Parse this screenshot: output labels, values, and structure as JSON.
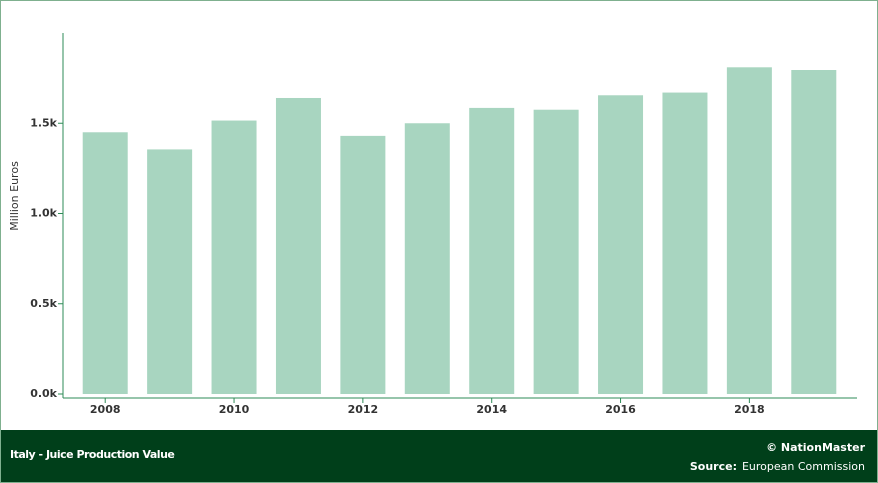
{
  "chart_data": {
    "type": "bar",
    "title": "Italy - Juice Production Value",
    "y_label": "Million Euros",
    "categories": [
      "2008",
      null,
      "2010",
      null,
      "2012",
      null,
      "2014",
      null,
      "2016",
      null,
      "2018",
      null
    ],
    "values": [
      1450,
      1355,
      1515,
      1640,
      1430,
      1500,
      1585,
      1575,
      1655,
      1670,
      1810,
      1795
    ],
    "color": "#a8d5c0",
    "ylim": [
      0,
      2000
    ],
    "yticks": [
      {
        "value": 0,
        "label": "0.0k"
      },
      {
        "value": 500,
        "label": "0.5k"
      },
      {
        "value": 1000,
        "label": "1.0k"
      },
      {
        "value": 1500,
        "label": "1.5k"
      }
    ],
    "grid": false,
    "brand": "© NationMaster",
    "source_label": "Source:",
    "source": "European Commission"
  }
}
